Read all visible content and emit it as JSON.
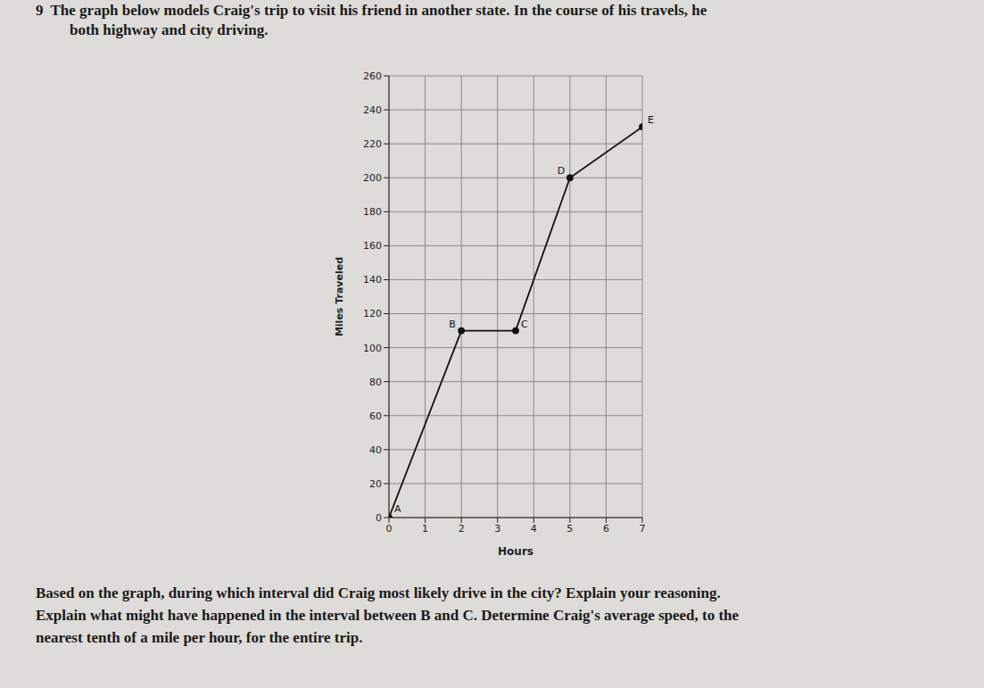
{
  "problem_number": "9",
  "intro": [
    "The graph below models Craig's trip to visit his friend in another state.  In the course of his travels, he",
    "both highway and city driving."
  ],
  "chart_data": {
    "type": "line",
    "x": [
      0,
      2,
      3.5,
      5,
      7
    ],
    "values": [
      0,
      110,
      110,
      200,
      230
    ],
    "point_labels": [
      "A",
      "B",
      "C",
      "D",
      "E"
    ],
    "x_label": "Hours",
    "y_label": "Miles Traveled",
    "xlim": [
      0,
      7
    ],
    "ylim": [
      0,
      260
    ],
    "xticks": [
      0,
      1,
      2,
      3,
      4,
      5,
      6,
      7
    ],
    "yticks": [
      0,
      20,
      40,
      60,
      80,
      100,
      120,
      140,
      160,
      180,
      200,
      220,
      240,
      260
    ],
    "grid": true,
    "color": "#111111",
    "marker": "circle"
  },
  "question": [
    "Based on the graph, during which interval did Craig most likely drive in the city?  Explain your reasoning.",
    "Explain what might have happened in the interval between B and C.  Determine Craig's average speed, to the",
    "nearest tenth of a mile per hour, for the entire trip."
  ]
}
